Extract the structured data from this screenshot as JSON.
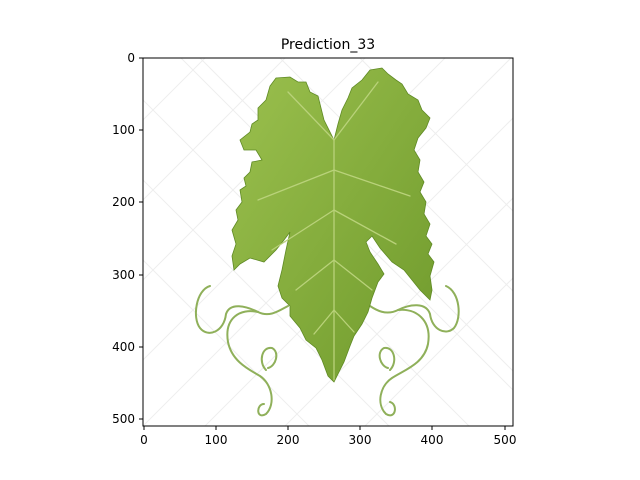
{
  "figure": {
    "title": "Prediction_33"
  },
  "image": {
    "subject": "grape-leaf-with-tendrils",
    "leaf_color": "#6f9a2c",
    "leaf_highlight": "#9bc04e",
    "vein_color": "#b9d27a",
    "tendril_color": "#8fb05a",
    "watermark_color": "#eeeeee"
  },
  "axes": {
    "x_ticks": [
      "0",
      "100",
      "200",
      "300",
      "400",
      "500"
    ],
    "y_ticks": [
      "0",
      "100",
      "200",
      "300",
      "400",
      "500"
    ]
  }
}
